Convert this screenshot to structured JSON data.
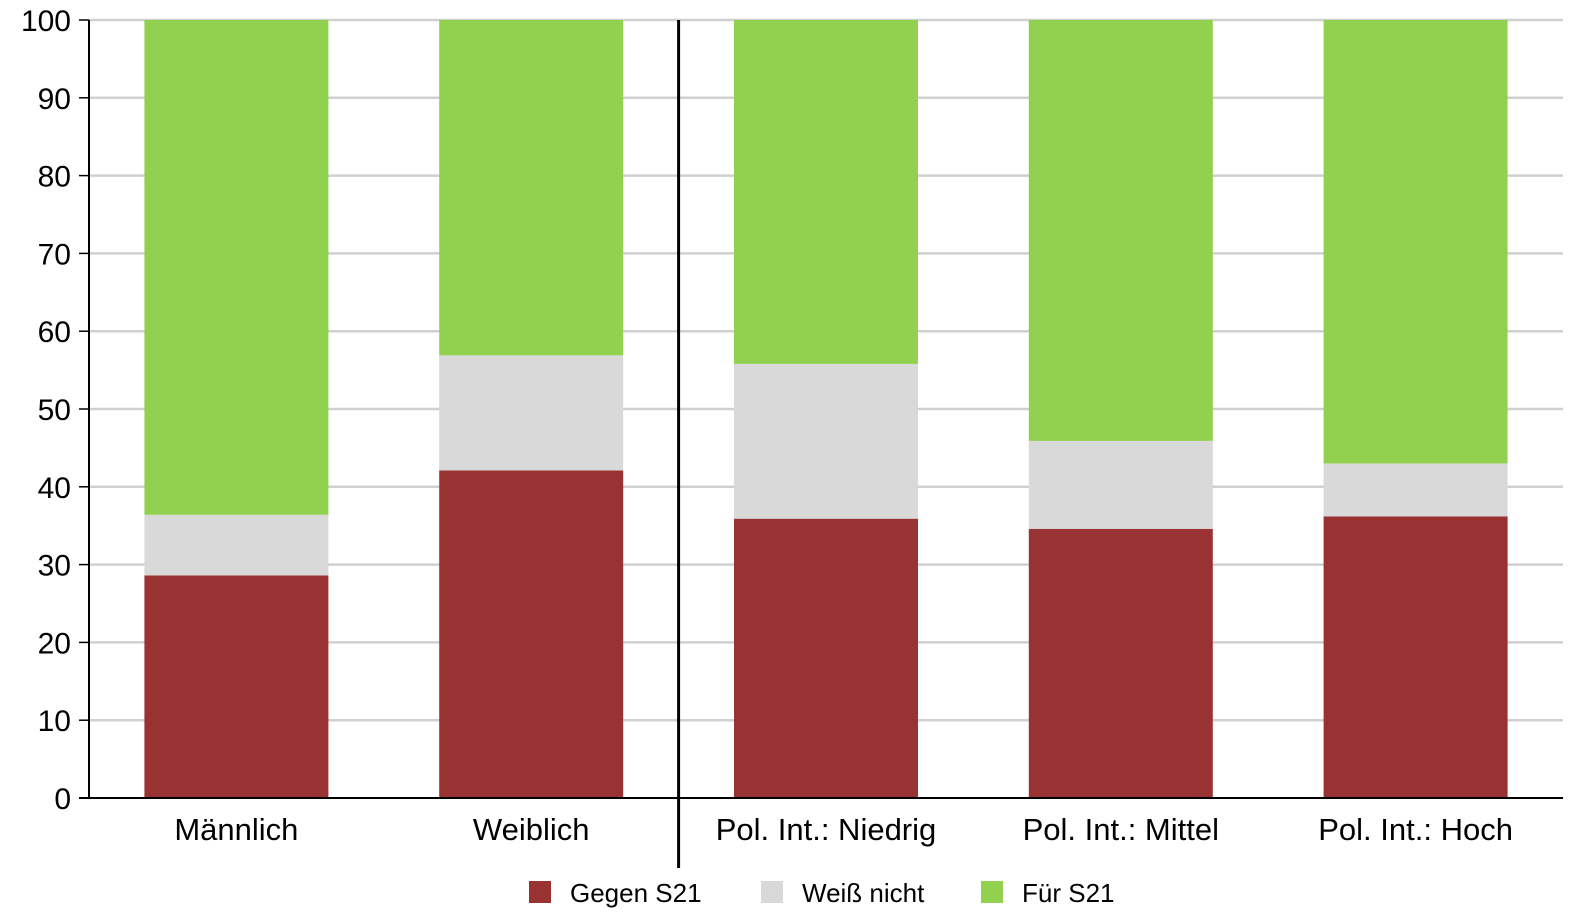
{
  "chart_data": {
    "type": "bar",
    "stacked": true,
    "categories": [
      "Männlich",
      "Weiblich",
      "Pol. Int.: Niedrig",
      "Pol. Int.: Mittel",
      "Pol. Int.: Hoch"
    ],
    "series": [
      {
        "name": "Gegen S21",
        "color": "#993333",
        "values": [
          28.6,
          42.1,
          35.9,
          34.6,
          36.2
        ]
      },
      {
        "name": "Weiß nicht",
        "color": "#d9d9d9",
        "values": [
          7.8,
          14.8,
          19.9,
          11.3,
          6.8
        ]
      },
      {
        "name": "Für S21",
        "color": "#92d050",
        "values": [
          63.6,
          43.1,
          44.2,
          54.1,
          57.0
        ]
      }
    ],
    "yticks": [
      "0",
      "10",
      "20",
      "30",
      "40",
      "50",
      "60",
      "70",
      "80",
      "90",
      "100"
    ],
    "ylim": [
      0,
      100
    ],
    "grid": true,
    "group_separator_after_category": 1,
    "legend_position": "bottom"
  }
}
